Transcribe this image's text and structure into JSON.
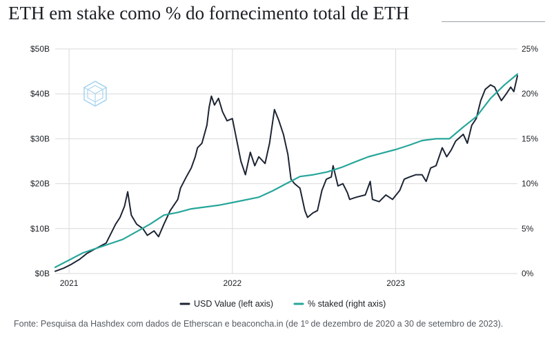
{
  "title": "ETH em stake como % do fornecimento total de ETH",
  "source": "Fonte: Pesquisa da Hashdex com dados de Etherscan e beaconcha.in (de 1º de dezembro de 2020 a 30 de setembro de 2023).",
  "colors": {
    "usd": "#1c2433",
    "staked": "#26a69a",
    "grid": "#d9d9d9",
    "logo": "#a9d5f0"
  },
  "icons": {
    "watermark": "hashdex-logo-icon"
  },
  "chart_data": {
    "type": "line",
    "x_range": [
      "2020-12-01",
      "2023-09-30"
    ],
    "x_tick_labels": [
      "2021",
      "2022",
      "2023"
    ],
    "x_ticks": [
      "2021-01-01",
      "2022-01-01",
      "2023-01-01"
    ],
    "y_left": {
      "ylim": [
        0,
        50
      ],
      "tick_labels": [
        "$0B",
        "$10B",
        "$20B",
        "$30B",
        "$40B",
        "$50B"
      ],
      "ticks": [
        0,
        10,
        20,
        30,
        40,
        50
      ]
    },
    "y_right": {
      "ylim": [
        0,
        25
      ],
      "tick_labels": [
        "0%",
        "5%",
        "10%",
        "15%",
        "20%",
        "25%"
      ],
      "ticks": [
        0,
        5,
        10,
        15,
        20,
        25
      ]
    },
    "grid": "horizontal and vertical",
    "legend_position": "bottom-center",
    "series": [
      {
        "name": "USD Value (left axis)",
        "axis": "left",
        "color": "#1c2433",
        "points": [
          [
            "2020-12-01",
            0.5
          ],
          [
            "2020-12-20",
            1.2
          ],
          [
            "2021-01-05",
            2.0
          ],
          [
            "2021-01-25",
            3.2
          ],
          [
            "2021-02-10",
            4.5
          ],
          [
            "2021-02-25",
            5.3
          ],
          [
            "2021-03-10",
            6.0
          ],
          [
            "2021-03-25",
            6.8
          ],
          [
            "2021-04-05",
            9.0
          ],
          [
            "2021-04-15",
            11.0
          ],
          [
            "2021-04-25",
            12.5
          ],
          [
            "2021-05-05",
            15.0
          ],
          [
            "2021-05-12",
            18.2
          ],
          [
            "2021-05-20",
            13.0
          ],
          [
            "2021-06-01",
            11.0
          ],
          [
            "2021-06-15",
            10.0
          ],
          [
            "2021-06-25",
            8.5
          ],
          [
            "2021-07-10",
            9.5
          ],
          [
            "2021-07-20",
            8.2
          ],
          [
            "2021-08-01",
            11.0
          ],
          [
            "2021-08-15",
            14.0
          ],
          [
            "2021-09-01",
            16.5
          ],
          [
            "2021-09-07",
            19.0
          ],
          [
            "2021-09-20",
            21.5
          ],
          [
            "2021-10-01",
            23.5
          ],
          [
            "2021-10-10",
            26.0
          ],
          [
            "2021-10-15",
            28.0
          ],
          [
            "2021-10-25",
            29.0
          ],
          [
            "2021-11-05",
            33.0
          ],
          [
            "2021-11-10",
            37.0
          ],
          [
            "2021-11-15",
            39.5
          ],
          [
            "2021-11-22",
            37.5
          ],
          [
            "2021-12-01",
            39.0
          ],
          [
            "2021-12-10",
            36.0
          ],
          [
            "2021-12-20",
            34.0
          ],
          [
            "2022-01-01",
            34.5
          ],
          [
            "2022-01-10",
            30.0
          ],
          [
            "2022-01-20",
            25.0
          ],
          [
            "2022-01-30",
            22.0
          ],
          [
            "2022-02-10",
            27.0
          ],
          [
            "2022-02-20",
            24.0
          ],
          [
            "2022-03-01",
            26.0
          ],
          [
            "2022-03-15",
            24.5
          ],
          [
            "2022-03-25",
            29.0
          ],
          [
            "2022-04-05",
            36.5
          ],
          [
            "2022-04-15",
            34.0
          ],
          [
            "2022-04-25",
            31.0
          ],
          [
            "2022-05-05",
            26.5
          ],
          [
            "2022-05-12",
            21.0
          ],
          [
            "2022-05-20",
            20.0
          ],
          [
            "2022-06-01",
            19.0
          ],
          [
            "2022-06-12",
            14.0
          ],
          [
            "2022-06-18",
            12.5
          ],
          [
            "2022-06-30",
            13.5
          ],
          [
            "2022-07-10",
            14.0
          ],
          [
            "2022-07-20",
            18.5
          ],
          [
            "2022-07-30",
            21.0
          ],
          [
            "2022-08-10",
            21.5
          ],
          [
            "2022-08-14",
            24.0
          ],
          [
            "2022-08-25",
            19.5
          ],
          [
            "2022-09-05",
            20.0
          ],
          [
            "2022-09-15",
            18.0
          ],
          [
            "2022-09-20",
            16.5
          ],
          [
            "2022-10-05",
            17.0
          ],
          [
            "2022-10-25",
            17.5
          ],
          [
            "2022-11-05",
            20.5
          ],
          [
            "2022-11-10",
            16.5
          ],
          [
            "2022-11-25",
            16.0
          ],
          [
            "2022-12-10",
            17.5
          ],
          [
            "2022-12-25",
            16.5
          ],
          [
            "2023-01-10",
            18.5
          ],
          [
            "2023-01-20",
            21.0
          ],
          [
            "2023-02-01",
            21.5
          ],
          [
            "2023-02-15",
            22.0
          ],
          [
            "2023-03-01",
            22.0
          ],
          [
            "2023-03-10",
            20.5
          ],
          [
            "2023-03-20",
            23.5
          ],
          [
            "2023-04-01",
            24.0
          ],
          [
            "2023-04-15",
            28.0
          ],
          [
            "2023-04-25",
            26.0
          ],
          [
            "2023-05-05",
            27.5
          ],
          [
            "2023-05-15",
            29.5
          ],
          [
            "2023-06-01",
            31.0
          ],
          [
            "2023-06-10",
            29.0
          ],
          [
            "2023-06-20",
            33.0
          ],
          [
            "2023-06-30",
            34.5
          ],
          [
            "2023-07-10",
            38.5
          ],
          [
            "2023-07-20",
            41.0
          ],
          [
            "2023-08-01",
            42.0
          ],
          [
            "2023-08-10",
            41.5
          ],
          [
            "2023-08-17",
            40.0
          ],
          [
            "2023-08-25",
            38.5
          ],
          [
            "2023-09-05",
            40.0
          ],
          [
            "2023-09-15",
            41.5
          ],
          [
            "2023-09-22",
            40.5
          ],
          [
            "2023-09-30",
            44.0
          ]
        ]
      },
      {
        "name": "% staked (right axis)",
        "axis": "right",
        "color": "#26a69a",
        "points": [
          [
            "2020-12-01",
            0.7
          ],
          [
            "2021-02-01",
            2.3
          ],
          [
            "2021-04-01",
            3.3
          ],
          [
            "2021-05-01",
            3.8
          ],
          [
            "2021-07-01",
            5.5
          ],
          [
            "2021-08-01",
            6.5
          ],
          [
            "2021-09-01",
            6.8
          ],
          [
            "2021-10-01",
            7.2
          ],
          [
            "2021-12-01",
            7.6
          ],
          [
            "2022-01-01",
            7.9
          ],
          [
            "2022-03-01",
            8.5
          ],
          [
            "2022-04-01",
            9.2
          ],
          [
            "2022-05-01",
            10.0
          ],
          [
            "2022-06-01",
            10.8
          ],
          [
            "2022-07-01",
            11.0
          ],
          [
            "2022-08-01",
            11.3
          ],
          [
            "2022-09-01",
            11.8
          ],
          [
            "2022-10-01",
            12.4
          ],
          [
            "2022-11-01",
            13.0
          ],
          [
            "2022-12-01",
            13.4
          ],
          [
            "2023-01-01",
            13.8
          ],
          [
            "2023-02-01",
            14.3
          ],
          [
            "2023-03-01",
            14.8
          ],
          [
            "2023-04-01",
            15.0
          ],
          [
            "2023-05-01",
            15.0
          ],
          [
            "2023-06-01",
            16.3
          ],
          [
            "2023-07-01",
            17.5
          ],
          [
            "2023-08-01",
            19.5
          ],
          [
            "2023-09-01",
            21.0
          ],
          [
            "2023-09-30",
            22.2
          ]
        ]
      }
    ]
  }
}
